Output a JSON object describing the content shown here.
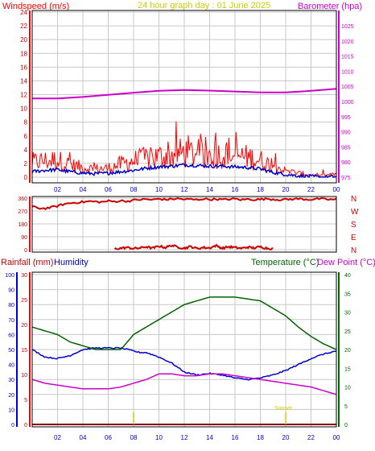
{
  "colors": {
    "background": "#ffffff",
    "border": "#000000",
    "grid": "#c8c8c8",
    "wind": "#ff0000",
    "gust_avg": "#0000cc",
    "barometer": "#cc00cc",
    "direction": "#cc0000",
    "rain": "#0000cc",
    "humidity": "#0000cc",
    "temperature": "#006400",
    "dewpoint": "#cc00cc",
    "title": "#cccc00",
    "baseline": "#800000",
    "sun_marker": "#cccc00"
  },
  "header": {
    "left_label": "Windspeed (m/s)",
    "title": "24 hour graph day : 01 June 2025",
    "right_label": "Barometer (hpa)"
  },
  "bottom_header": {
    "rainfall_label": "Rainfall (mm)",
    "humidity_label": "Humidity",
    "temperature_label": "Temperature (°C)",
    "dewpoint_label": "Dew Point (°C)"
  },
  "sun_label": "Sunset",
  "chart_data": [
    {
      "type": "line",
      "title": "24 hour graph day : 01 June 2025",
      "x_ticks": [
        "02",
        "04",
        "06",
        "08",
        "10",
        "12",
        "14",
        "16",
        "18",
        "20",
        "22",
        "00"
      ],
      "y_left": {
        "label": "Windspeed (m/s)",
        "ticks": [
          0,
          2,
          4,
          6,
          8,
          10,
          12,
          14,
          16,
          18,
          20,
          22,
          24
        ],
        "ylim": [
          0,
          25
        ]
      },
      "y_right": {
        "label": "Barometer (hpa)",
        "ticks": [
          975,
          980,
          985,
          990,
          995,
          1000,
          1005,
          1010,
          1015,
          1020,
          1025
        ],
        "ylim": [
          973.5,
          1030
        ]
      },
      "grid": true,
      "series": [
        {
          "axis": "left",
          "style": "noisy",
          "x": [
            0,
            1,
            2,
            3,
            4,
            5,
            6,
            7,
            8,
            9,
            10,
            11,
            12,
            13,
            14,
            15,
            16,
            17,
            18,
            19,
            20,
            21,
            22,
            23,
            24
          ],
          "values": [
            2.2,
            2.4,
            2.5,
            1.8,
            1.4,
            1.2,
            1.3,
            1.9,
            2.4,
            2.7,
            3.0,
            3.2,
            3.6,
            3.4,
            3.2,
            3.3,
            3.1,
            2.9,
            2.5,
            1.6,
            0.9,
            0.6,
            0.3,
            0.2,
            0.5
          ]
        },
        {
          "axis": "left",
          "style": "noisy",
          "x": [
            0,
            1,
            2,
            3,
            4,
            5,
            6,
            7,
            8,
            9,
            10,
            11,
            12,
            13,
            14,
            15,
            16,
            17,
            18,
            19,
            20,
            21,
            22,
            23,
            24
          ],
          "values": [
            0.8,
            1.0,
            1.1,
            0.8,
            0.6,
            0.5,
            0.6,
            0.8,
            1.0,
            1.3,
            1.5,
            1.6,
            1.8,
            1.7,
            1.6,
            1.6,
            1.5,
            1.4,
            1.2,
            0.7,
            0.4,
            0.2,
            0.1,
            0.0,
            0.1
          ]
        },
        {
          "axis": "right",
          "x": [
            0,
            2,
            4,
            6,
            8,
            10,
            12,
            14,
            16,
            18,
            20,
            22,
            24
          ],
          "values": [
            1001.0,
            1001.0,
            1001.5,
            1002.2,
            1002.9,
            1003.5,
            1003.8,
            1003.6,
            1003.3,
            1003.0,
            1003.0,
            1003.5,
            1004.2
          ]
        }
      ]
    },
    {
      "type": "scatter",
      "y_left": {
        "ticks": [
          0,
          90,
          180,
          270,
          360
        ],
        "ylim": [
          0,
          360
        ]
      },
      "y_right": {
        "ticks": [
          "N",
          "W",
          "S",
          "E",
          "N"
        ]
      },
      "grid": true,
      "series": [
        {
          "x": [
            0,
            0.5,
            1,
            1.5,
            2,
            2.5,
            3,
            3.5,
            4,
            4.5,
            5,
            5.5,
            6,
            6.5,
            7,
            7.5,
            8,
            8.5,
            9,
            9.5,
            10,
            10.5,
            11,
            11.5,
            12,
            12.5,
            13,
            13.5,
            14,
            14.5,
            15,
            15.5,
            16,
            16.5,
            17,
            17.5,
            18,
            18.5,
            19,
            19.5,
            20,
            20.5,
            21,
            21.5,
            22,
            22.5,
            23,
            23.5,
            24
          ],
          "values": [
            300,
            290,
            288,
            295,
            305,
            318,
            325,
            330,
            333,
            338,
            335,
            332,
            340,
            336,
            342,
            338,
            345,
            350,
            352,
            348,
            355,
            350,
            353,
            357,
            351,
            352,
            348,
            356,
            350,
            354,
            349,
            352,
            355,
            348,
            353,
            350,
            351,
            356,
            352,
            349,
            350,
            353,
            355,
            352,
            350,
            356,
            353,
            350,
            351
          ]
        },
        {
          "x": [
            6.5,
            7,
            7.5,
            8,
            8.5,
            9,
            9.5,
            10,
            10.5,
            11,
            11.5,
            12,
            12.5,
            13,
            13.5,
            14,
            14.5,
            15,
            15.5,
            16,
            16.5,
            17,
            17.5,
            18,
            18.5,
            19
          ],
          "values": [
            5,
            10,
            15,
            8,
            12,
            20,
            10,
            25,
            15,
            30,
            18,
            10,
            22,
            8,
            15,
            12,
            28,
            10,
            20,
            15,
            9,
            18,
            12,
            20,
            10,
            6
          ]
        }
      ]
    },
    {
      "type": "line",
      "x_ticks": [
        "02",
        "04",
        "06",
        "08",
        "10",
        "12",
        "14",
        "16",
        "18",
        "20",
        "22",
        "00"
      ],
      "y_humidity": {
        "label": "Humidity",
        "ticks": [
          0,
          10,
          20,
          30,
          40,
          50,
          60,
          70,
          80,
          90,
          100
        ],
        "ylim": [
          0,
          100
        ]
      },
      "y_rainfall": {
        "label": "Rainfall (mm)",
        "ticks": [
          0,
          5,
          10,
          15,
          20,
          25,
          30
        ],
        "ylim": [
          0,
          30
        ]
      },
      "y_right": {
        "label": "Temperature (°C) / Dew Point (°C)",
        "ticks": [
          0,
          5,
          10,
          15,
          20,
          25,
          30,
          35,
          40
        ],
        "ylim": [
          0,
          40
        ]
      },
      "grid": true,
      "series": [
        {
          "axis": "humidity",
          "x": [
            0,
            1,
            2,
            3,
            4,
            5,
            6,
            7,
            8,
            8.5,
            9,
            10,
            11,
            12,
            13,
            14,
            15,
            16,
            17,
            18,
            19,
            20,
            21,
            22,
            23,
            24
          ],
          "values": [
            50,
            45,
            44,
            46,
            50,
            51,
            51,
            51,
            49,
            48,
            48,
            45,
            41,
            35,
            33,
            34,
            33,
            31,
            30,
            31,
            33,
            36,
            40,
            44,
            47,
            49
          ]
        },
        {
          "axis": "right",
          "x": [
            0,
            1,
            2,
            3,
            4,
            5,
            6,
            7,
            7.5,
            8,
            9,
            10,
            11,
            12,
            13,
            14,
            15,
            16,
            17,
            18,
            19,
            20,
            21,
            22,
            23,
            24
          ],
          "values": [
            26,
            25,
            24,
            22,
            21,
            20,
            20,
            20,
            22,
            24,
            26,
            28,
            30,
            32,
            33,
            34,
            34,
            34,
            33.5,
            33,
            31,
            29,
            26,
            23.5,
            21.5,
            20
          ]
        },
        {
          "axis": "right",
          "x": [
            0,
            1,
            2,
            3,
            4,
            5,
            6,
            7,
            8,
            9,
            10,
            11,
            12,
            13,
            14,
            15,
            16,
            17,
            18,
            19,
            20,
            21,
            22,
            23,
            24
          ],
          "values": [
            12,
            11,
            10.5,
            10,
            9.5,
            9.5,
            9.5,
            10,
            11,
            12,
            13.5,
            13.5,
            13,
            13,
            13.5,
            13.5,
            13,
            12.5,
            12,
            11.5,
            11,
            10.5,
            10,
            9,
            8
          ]
        }
      ],
      "markers": [
        {
          "x": 8,
          "label": ""
        },
        {
          "x": 20,
          "label": "Sunset"
        }
      ]
    }
  ]
}
